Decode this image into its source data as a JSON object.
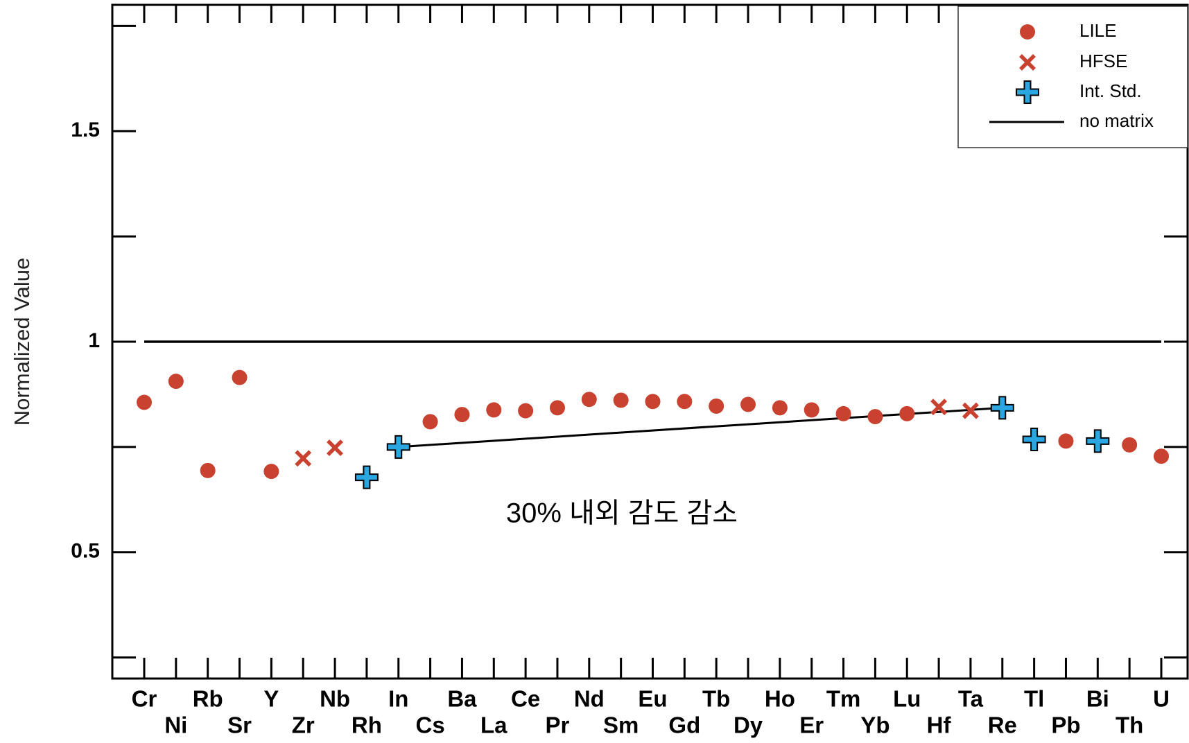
{
  "chart_data": {
    "type": "scatter",
    "y_label": "Normalized Value",
    "annotation": "30% 내외 감도 감소",
    "categories": [
      "Cr",
      "Ni",
      "Rb",
      "Sr",
      "Y",
      "Zr",
      "Nb",
      "Rh",
      "In",
      "Cs",
      "Ba",
      "La",
      "Ce",
      "Pr",
      "Nd",
      "Sm",
      "Eu",
      "Gd",
      "Tb",
      "Dy",
      "Ho",
      "Er",
      "Tm",
      "Yb",
      "Lu",
      "Hf",
      "Ta",
      "Re",
      "Tl",
      "Pb",
      "Bi",
      "Th",
      "U"
    ],
    "series": [
      {
        "name": "LILE",
        "marker": "circle",
        "color": "#c9412f",
        "values": [
          0.856,
          0.906,
          0.694,
          0.915,
          0.692,
          null,
          null,
          null,
          null,
          0.81,
          0.827,
          0.838,
          0.836,
          0.843,
          0.863,
          0.861,
          0.858,
          0.858,
          0.847,
          0.851,
          0.843,
          0.838,
          0.829,
          0.822,
          0.829,
          null,
          null,
          null,
          null,
          0.764,
          null,
          0.755,
          0.728
        ]
      },
      {
        "name": "HFSE",
        "marker": "x",
        "color": "#c9412f",
        "values": [
          null,
          null,
          null,
          null,
          null,
          0.723,
          0.748,
          null,
          null,
          null,
          null,
          null,
          null,
          null,
          null,
          null,
          null,
          null,
          null,
          null,
          null,
          null,
          null,
          null,
          null,
          0.845,
          0.836,
          null,
          null,
          null,
          null,
          null,
          null
        ]
      },
      {
        "name": "Int. Std.",
        "marker": "plus",
        "color": "#2aa6e0",
        "values": [
          null,
          null,
          null,
          null,
          null,
          null,
          null,
          0.678,
          0.75,
          null,
          null,
          null,
          null,
          null,
          null,
          null,
          null,
          null,
          null,
          null,
          null,
          null,
          null,
          null,
          null,
          null,
          null,
          0.843,
          0.768,
          null,
          0.764,
          null,
          null
        ]
      }
    ],
    "reference_line": {
      "name": "no matrix",
      "value": 1,
      "color": "#000000"
    },
    "trend_line": {
      "x": [
        "In",
        "Re"
      ],
      "values": [
        0.75,
        0.843
      ],
      "color": "#000000"
    },
    "ylim": [
      0.2,
      1.8
    ],
    "yticks": [
      0.5,
      1,
      1.5
    ],
    "minor_yticks": [
      0.25,
      0.75,
      1.25,
      1.75
    ],
    "legend": "upper right"
  }
}
